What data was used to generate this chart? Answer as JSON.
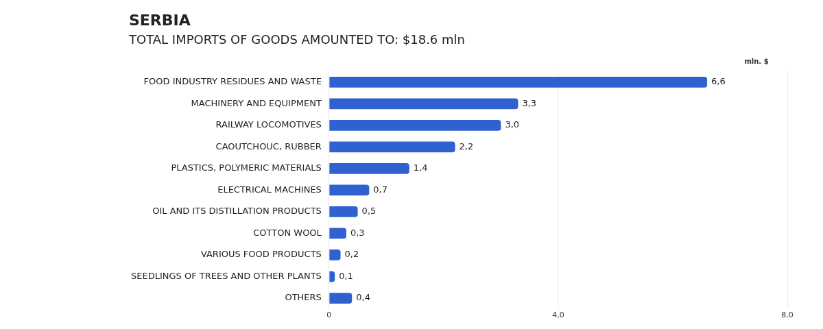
{
  "chart_data": {
    "type": "bar",
    "orientation": "horizontal",
    "title": "SERBIA",
    "subtitle": "TOTAL IMPORTS OF GOODS AMOUNTED TO: $18.6 mln",
    "xlabel": "mln. $",
    "categories": [
      "FOOD INDUSTRY RESIDUES AND WASTE",
      "MACHINERY AND EQUIPMENT",
      "RAILWAY LOCOMOTIVES",
      "CAOUTCHOUC, RUBBER",
      "PLASTICS, POLYMERIC MATERIALS",
      "ELECTRICAL MACHINES",
      "OIL AND ITS DISTILLATION PRODUCTS",
      "COTTON WOOL",
      "VARIOUS FOOD PRODUCTS",
      "SEEDLINGS OF TREES AND OTHER PLANTS",
      "OTHERS"
    ],
    "values": [
      6.6,
      3.3,
      3.0,
      2.2,
      1.4,
      0.7,
      0.5,
      0.3,
      0.2,
      0.1,
      0.4
    ],
    "value_labels": [
      "6,6",
      "3,3",
      "3,0",
      "2,2",
      "1,4",
      "0,7",
      "0,5",
      "0,3",
      "0,2",
      "0,1",
      "0,4"
    ],
    "color": "#2f62d0",
    "xlim": [
      0,
      8
    ],
    "xticks": [
      0,
      {
        "value": 4,
        "label": "4,0"
      },
      {
        "value": 8,
        "label": "8,0"
      }
    ],
    "grid": "x"
  }
}
